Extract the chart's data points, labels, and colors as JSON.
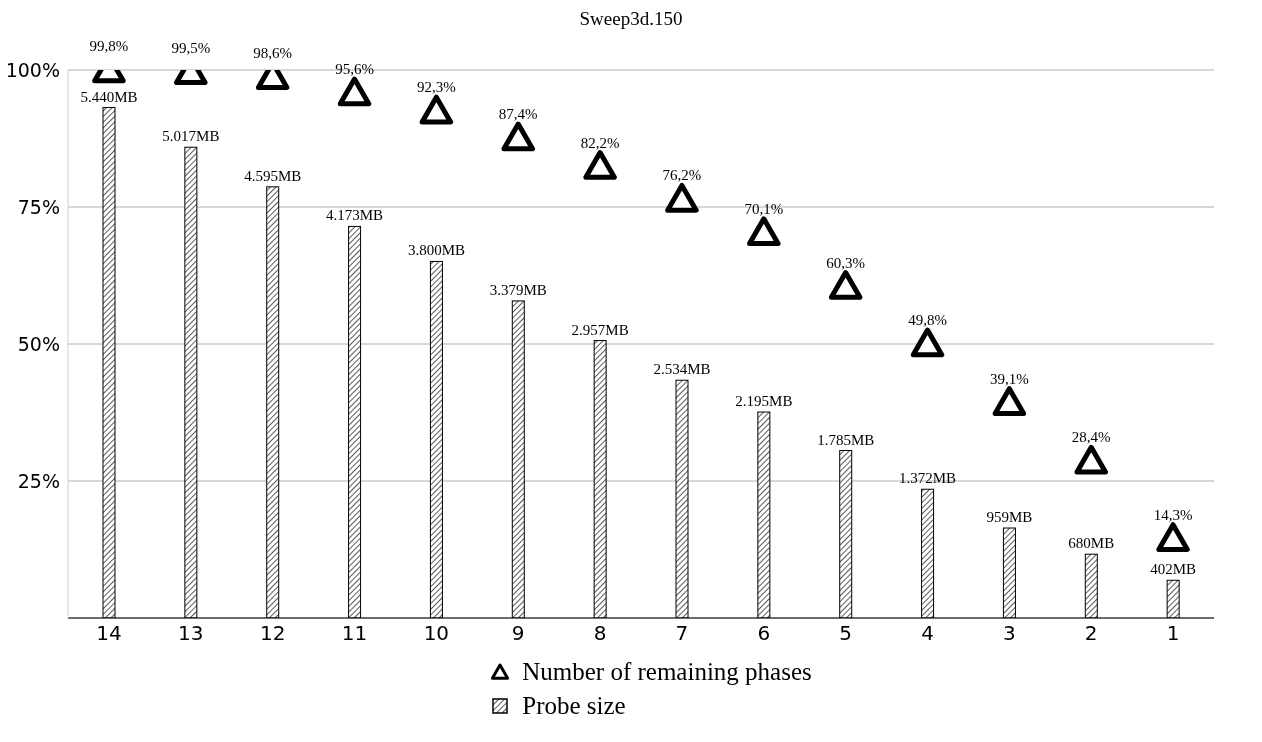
{
  "chart_data": {
    "type": "bar",
    "title": "Sweep3d.150",
    "categories": [
      "14",
      "13",
      "12",
      "11",
      "10",
      "9",
      "8",
      "7",
      "6",
      "5",
      "4",
      "3",
      "2",
      "1"
    ],
    "series": [
      {
        "name": "Number of remaining phases",
        "type": "scatter",
        "marker": "triangle",
        "color": "#000000",
        "values": [
          99.8,
          99.5,
          98.6,
          95.6,
          92.3,
          87.4,
          82.2,
          76.2,
          70.1,
          60.3,
          49.8,
          39.1,
          28.4,
          14.3
        ],
        "value_labels": [
          "99,8%",
          "99,5%",
          "98,6%",
          "95,6%",
          "92,3%",
          "87,4%",
          "82,2%",
          "76,2%",
          "70,1%",
          "60,3%",
          "49,8%",
          "39,1%",
          "28,4%",
          "14,3%"
        ]
      },
      {
        "name": "Probe size",
        "axis": "y2",
        "color": "#000000",
        "values": [
          5440,
          5017,
          4595,
          4173,
          3800,
          3379,
          2957,
          2534,
          2195,
          1785,
          1372,
          959,
          680,
          402
        ],
        "value_labels": [
          "5.440MB",
          "5.017MB",
          "4.595MB",
          "4.173MB",
          "3.800MB",
          "3.379MB",
          "2.957MB",
          "2.534MB",
          "2.195MB",
          "1.785MB",
          "1.372MB",
          "959MB",
          "680MB",
          "402MB"
        ]
      }
    ],
    "ylim": [
      0,
      100
    ],
    "yticks": [
      {
        "value": 25,
        "label": "25%"
      },
      {
        "value": 50,
        "label": "50%"
      },
      {
        "value": 75,
        "label": "75%"
      },
      {
        "value": 100,
        "label": "100%"
      }
    ],
    "y2lim": [
      0,
      5840
    ],
    "grid": "y",
    "legend": "bottom"
  }
}
